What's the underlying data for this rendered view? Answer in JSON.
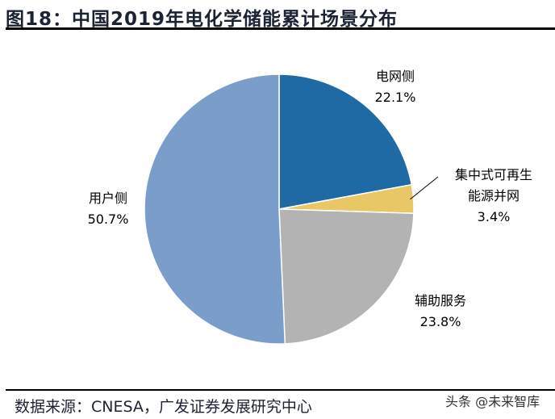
{
  "title": "图18：中国2019年电化学储能累计场景分布",
  "source": "数据来源：CNESA，广发证券发展研究中心",
  "watermark": "头条 @未来智库",
  "chart_data": {
    "type": "pie",
    "start": "12 o'clock, clockwise",
    "slices": [
      {
        "label_lines": [
          "电网侧"
        ],
        "value": 22.1,
        "value_label": "22.1%",
        "color": "#1f6aa5"
      },
      {
        "label_lines": [
          "集中式可再生",
          "能源并网"
        ],
        "value": 3.4,
        "value_label": "3.4%",
        "color": "#e8c766"
      },
      {
        "label_lines": [
          "辅助服务"
        ],
        "value": 23.8,
        "value_label": "23.8%",
        "color": "#b3b3b3"
      },
      {
        "label_lines": [
          "用户侧"
        ],
        "value": 50.7,
        "value_label": "50.7%",
        "color": "#7b9dc9"
      }
    ]
  }
}
